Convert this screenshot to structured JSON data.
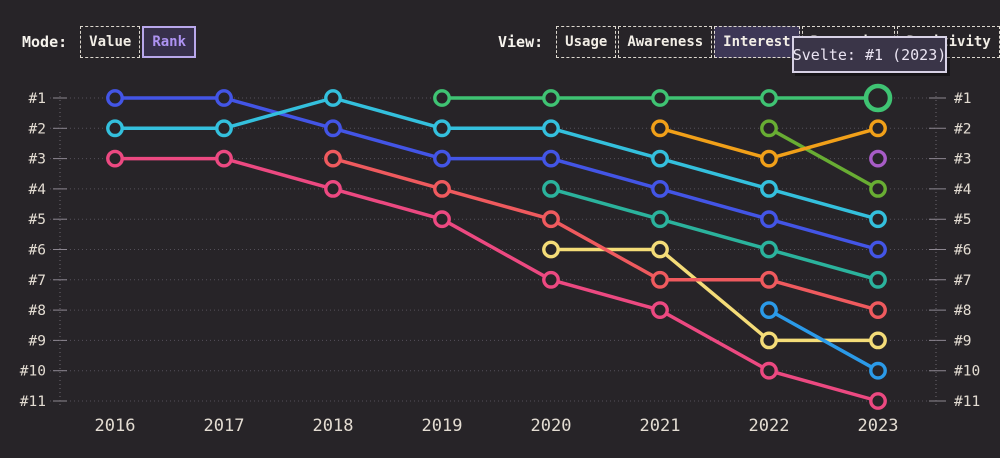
{
  "header": {
    "mode": {
      "label": "Mode:",
      "options": [
        {
          "label": "Value",
          "selected": false
        },
        {
          "label": "Rank",
          "selected": true
        }
      ]
    },
    "view": {
      "label": "View:",
      "options": [
        {
          "label": "Usage",
          "selected": false
        },
        {
          "label": "Awareness",
          "selected": false
        },
        {
          "label": "Interest",
          "selected": true
        },
        {
          "label": "Retention",
          "selected": false
        },
        {
          "label": "Positivity",
          "selected": false
        }
      ]
    }
  },
  "tooltip": {
    "text": "Svelte: #1 (2023)"
  },
  "chart_data": {
    "type": "line",
    "variant": "bump-rank",
    "title": "",
    "xlabel": "",
    "ylabel": "",
    "x": [
      2016,
      2017,
      2018,
      2019,
      2020,
      2021,
      2022,
      2023
    ],
    "rank_labels": [
      "#1",
      "#2",
      "#3",
      "#4",
      "#5",
      "#6",
      "#7",
      "#8",
      "#9",
      "#10",
      "#11"
    ],
    "ylim": [
      1,
      11
    ],
    "grid": "dotted-horizontal",
    "axes_mirrored": true,
    "hovered_point": {
      "series": "svelte-green",
      "label": "Svelte",
      "rank": 1,
      "year": 2023
    },
    "series": [
      {
        "name": "royal-blue",
        "color": "#4355e6",
        "ranks": [
          1,
          1,
          2,
          3,
          3,
          4,
          5,
          6
        ]
      },
      {
        "name": "cyan",
        "color": "#34c0dd",
        "ranks": [
          2,
          2,
          1,
          2,
          2,
          3,
          4,
          5
        ]
      },
      {
        "name": "magenta-pink",
        "color": "#ec4981",
        "ranks": [
          3,
          3,
          4,
          5,
          7,
          8,
          10,
          11
        ]
      },
      {
        "name": "coral-red",
        "color": "#ef5a5e",
        "ranks": [
          null,
          null,
          3,
          4,
          5,
          7,
          7,
          8
        ]
      },
      {
        "name": "svelte-green",
        "color": "#3fc373",
        "ranks": [
          null,
          null,
          null,
          1,
          1,
          1,
          1,
          1
        ],
        "highlight_last": true
      },
      {
        "name": "teal",
        "color": "#2bb39d",
        "ranks": [
          null,
          null,
          null,
          null,
          4,
          5,
          6,
          7
        ]
      },
      {
        "name": "yellow",
        "color": "#f4dc78",
        "ranks": [
          null,
          null,
          null,
          null,
          6,
          6,
          9,
          9
        ]
      },
      {
        "name": "orange",
        "color": "#f1a019",
        "ranks": [
          null,
          null,
          null,
          null,
          null,
          2,
          3,
          2
        ]
      },
      {
        "name": "olive-green",
        "color": "#68ad33",
        "ranks": [
          null,
          null,
          null,
          null,
          null,
          null,
          2,
          4
        ]
      },
      {
        "name": "sky-blue",
        "color": "#2b9ae8",
        "ranks": [
          null,
          null,
          null,
          null,
          null,
          null,
          8,
          10
        ]
      },
      {
        "name": "purple",
        "color": "#a75cc6",
        "ranks": [
          null,
          null,
          null,
          null,
          null,
          null,
          null,
          3
        ]
      }
    ],
    "colors": {
      "background": "#272428",
      "gridline": "#55505a",
      "axis": "#6e6870",
      "tick": "#8d8791",
      "label": "#e3dcd2"
    }
  }
}
